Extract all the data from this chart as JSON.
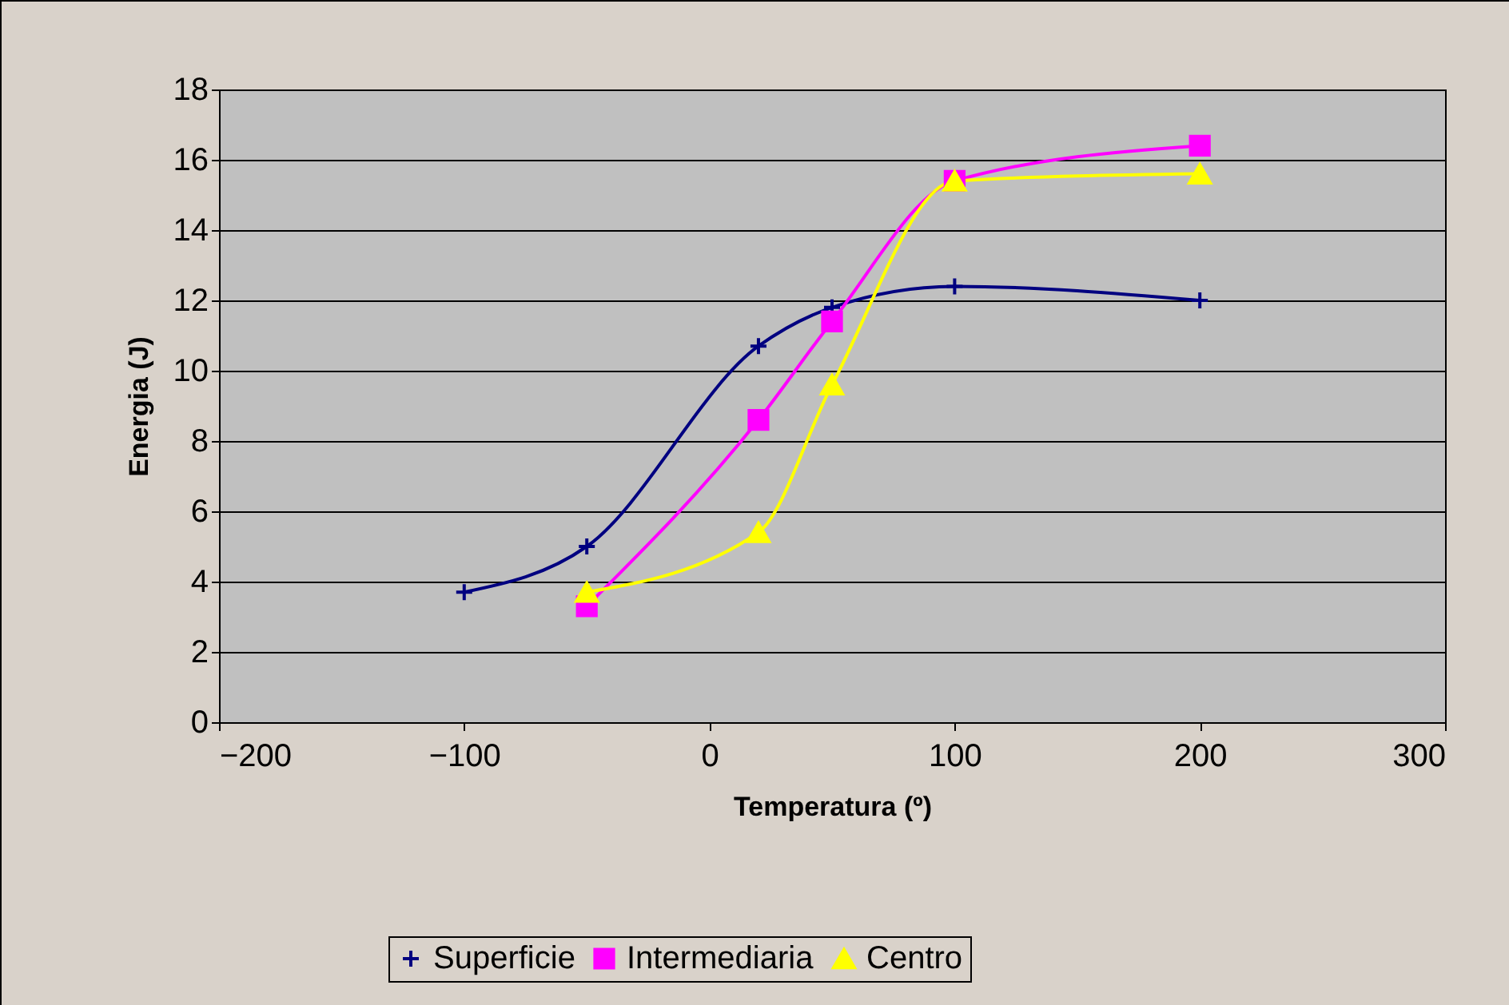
{
  "chart_data": {
    "type": "line",
    "xlabel": "Temperatura (º)",
    "ylabel": "Energia (J)",
    "xlim": [
      -200,
      300
    ],
    "xticks": [
      -200,
      -100,
      0,
      100,
      200,
      300
    ],
    "ylim": [
      0,
      18
    ],
    "yticks": [
      0,
      2,
      4,
      6,
      8,
      10,
      12,
      14,
      16,
      18
    ],
    "grid": "y",
    "legend": "bottom",
    "series": [
      {
        "name": "Superficie",
        "color": "#000080",
        "marker": "cross",
        "x": [
          -100,
          -50,
          20,
          50,
          100,
          200
        ],
        "values": [
          3.7,
          5.0,
          10.7,
          11.8,
          12.4,
          12.0
        ]
      },
      {
        "name": "Intermediaria",
        "color": "#ff00ff",
        "marker": "square",
        "x": [
          -50,
          20,
          50,
          100,
          200
        ],
        "values": [
          3.3,
          8.6,
          11.4,
          15.4,
          16.4
        ]
      },
      {
        "name": "Centro",
        "color": "#ffff00",
        "marker": "triangle",
        "x": [
          -50,
          20,
          50,
          100,
          200
        ],
        "values": [
          3.7,
          5.4,
          9.6,
          15.4,
          15.6
        ]
      }
    ]
  }
}
